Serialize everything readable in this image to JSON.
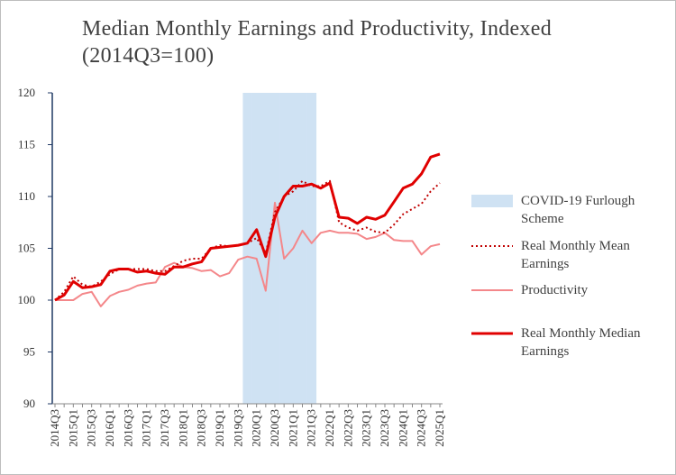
{
  "chart_data": {
    "type": "line",
    "title": "Median Monthly Earnings and Productivity, Indexed (2014Q3=100)",
    "categories": [
      "2014Q3",
      null,
      "2015Q1",
      null,
      "2015Q3",
      null,
      "2016Q1",
      null,
      "2016Q3",
      null,
      "2017Q1",
      null,
      "2017Q3",
      null,
      "2018Q1",
      null,
      "2018Q3",
      null,
      "2019Q1",
      null,
      "2019Q3",
      null,
      "2020Q1",
      null,
      "2020Q3",
      null,
      "2021Q1",
      null,
      "2021Q3",
      null,
      "2022Q1",
      null,
      "2022Q3",
      null,
      "2023Q1",
      null,
      "2023Q3",
      null,
      "2024Q1",
      null,
      "2024Q3",
      null,
      "2025Q1"
    ],
    "ylim": [
      90,
      120
    ],
    "yticks": [
      90,
      95,
      100,
      105,
      110,
      115,
      120
    ],
    "series": [
      {
        "name": "COVID-19 Furlough Scheme",
        "type": "bar",
        "color": "#cfe2f3",
        "values": [
          null,
          null,
          null,
          null,
          null,
          null,
          null,
          null,
          null,
          null,
          null,
          null,
          null,
          null,
          null,
          null,
          null,
          null,
          null,
          null,
          null,
          120,
          120,
          120,
          120,
          120,
          120,
          120,
          120,
          null,
          null,
          null,
          null,
          null,
          null,
          null,
          null,
          null,
          null,
          null,
          null,
          null,
          null
        ]
      },
      {
        "name": "Real Monthly Mean Earnings",
        "type": "line",
        "dash": "dotted",
        "color": "#c00000",
        "values": [
          100,
          100.8,
          102.3,
          101.5,
          101.3,
          101.8,
          102.5,
          103,
          103,
          103,
          103,
          102.8,
          102.8,
          103.3,
          103.8,
          104,
          104,
          105,
          105.3,
          105.2,
          105.3,
          105.5,
          106,
          104.5,
          108.5,
          110,
          110.5,
          111.5,
          111,
          111,
          111.5,
          107.5,
          107,
          106.7,
          107,
          106.6,
          106.5,
          107.3,
          108.3,
          108.8,
          109.3,
          110.5,
          111.3
        ]
      },
      {
        "name": "Productivity",
        "type": "line",
        "color": "#f4878a",
        "values": [
          100,
          100,
          100,
          100.6,
          100.8,
          99.4,
          100.4,
          100.8,
          101,
          101.4,
          101.6,
          101.7,
          103.2,
          103.6,
          103.2,
          103.1,
          102.8,
          102.9,
          102.3,
          102.6,
          103.9,
          104.2,
          104,
          100.9,
          109.4,
          104,
          105,
          106.7,
          105.5,
          106.5,
          106.7,
          106.5,
          106.5,
          106.4,
          105.9,
          106.1,
          106.5,
          105.8,
          105.7,
          105.7,
          104.4,
          105.2,
          105.4
        ]
      },
      {
        "name": "Real Monthly Median Earnings",
        "type": "line",
        "color": "#e00000",
        "width": 3,
        "values": [
          100,
          100.5,
          101.8,
          101.2,
          101.3,
          101.5,
          102.8,
          103,
          103,
          102.7,
          102.8,
          102.6,
          102.5,
          103.2,
          103.2,
          103.5,
          103.7,
          105,
          105.1,
          105.2,
          105.3,
          105.5,
          106.8,
          104.2,
          108,
          110,
          111,
          111,
          111.2,
          110.8,
          111.3,
          108,
          107.9,
          107.4,
          108,
          107.8,
          108.2,
          109.5,
          110.8,
          111.2,
          112.2,
          113.8,
          114.1
        ]
      }
    ]
  }
}
